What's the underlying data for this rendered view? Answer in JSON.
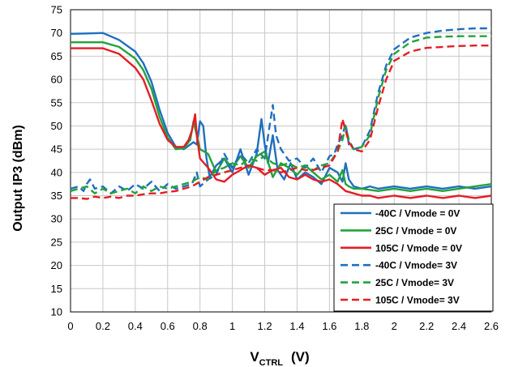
{
  "chart_data": {
    "type": "line",
    "title": "",
    "xlabel_main": "V",
    "xlabel_sub": "CTRL",
    "xlabel_unit": "(V)",
    "ylabel": "Output IP3  (dBm)",
    "xlim": [
      0,
      2.6
    ],
    "ylim": [
      10,
      75
    ],
    "x_ticks": [
      "0",
      "0.2",
      "0.4",
      "0.6",
      "0.8",
      "1",
      "1.2",
      "1.4",
      "1.6",
      "1.8",
      "2",
      "2.2",
      "2.4",
      "2.6"
    ],
    "y_ticks": [
      "10",
      "15",
      "20",
      "25",
      "30",
      "35",
      "40",
      "45",
      "50",
      "55",
      "60",
      "65",
      "70",
      "75"
    ],
    "grid": true,
    "legend_position": "bottom-right",
    "series": [
      {
        "name": "-40C /  Vmode = 0V",
        "color": "#1f6fbf",
        "dash": false,
        "x": [
          0,
          0.1,
          0.2,
          0.3,
          0.4,
          0.45,
          0.5,
          0.55,
          0.6,
          0.65,
          0.7,
          0.74,
          0.76,
          0.78,
          0.8,
          0.82,
          0.84,
          0.86,
          0.9,
          0.95,
          1.0,
          1.05,
          1.1,
          1.15,
          1.18,
          1.2,
          1.22,
          1.25,
          1.28,
          1.32,
          1.36,
          1.4,
          1.45,
          1.5,
          1.55,
          1.6,
          1.65,
          1.68,
          1.7,
          1.72,
          1.75,
          1.8,
          1.85,
          1.9,
          2.0,
          2.1,
          2.2,
          2.3,
          2.4,
          2.5,
          2.6
        ],
        "y": [
          69.8,
          69.9,
          70.0,
          68.5,
          66.0,
          63.5,
          59.5,
          53.5,
          48.5,
          45.5,
          45.0,
          46.0,
          46.5,
          46.0,
          51.0,
          50.0,
          43.0,
          39.0,
          41.5,
          43.0,
          40.0,
          45.0,
          39.5,
          44.0,
          51.5,
          46.0,
          42.0,
          48.0,
          40.5,
          38.5,
          42.0,
          38.5,
          40.0,
          39.0,
          37.5,
          41.0,
          40.0,
          38.0,
          42.0,
          38.5,
          37.0,
          36.5,
          37.0,
          36.5,
          37.0,
          36.5,
          37.0,
          36.5,
          37.0,
          36.5,
          37.0
        ]
      },
      {
        "name": "25C /  Vmode = 0V",
        "color": "#22a33a",
        "dash": false,
        "x": [
          0,
          0.1,
          0.2,
          0.3,
          0.4,
          0.45,
          0.5,
          0.55,
          0.6,
          0.65,
          0.7,
          0.74,
          0.76,
          0.78,
          0.8,
          0.85,
          0.9,
          0.95,
          1.0,
          1.05,
          1.1,
          1.15,
          1.2,
          1.25,
          1.3,
          1.35,
          1.4,
          1.45,
          1.5,
          1.55,
          1.6,
          1.65,
          1.68,
          1.7,
          1.72,
          1.75,
          1.8,
          1.9,
          2.0,
          2.1,
          2.2,
          2.3,
          2.4,
          2.5,
          2.6
        ],
        "y": [
          68.0,
          68.0,
          68.0,
          67.0,
          64.5,
          62.0,
          58.0,
          52.0,
          47.5,
          45.0,
          45.2,
          47.0,
          51.0,
          48.0,
          45.0,
          44.0,
          40.0,
          43.0,
          41.0,
          43.5,
          41.0,
          43.5,
          44.5,
          39.0,
          42.0,
          41.0,
          39.5,
          41.5,
          40.0,
          38.5,
          39.5,
          38.0,
          40.5,
          37.5,
          37.0,
          36.5,
          36.5,
          36.0,
          36.5,
          36.0,
          36.5,
          36.0,
          36.5,
          37.0,
          37.5
        ]
      },
      {
        "name": "105C /  Vmode = 0V",
        "color": "#e31e24",
        "dash": false,
        "x": [
          0,
          0.1,
          0.2,
          0.3,
          0.4,
          0.45,
          0.5,
          0.55,
          0.6,
          0.65,
          0.7,
          0.73,
          0.75,
          0.77,
          0.78,
          0.8,
          0.85,
          0.9,
          0.95,
          1.0,
          1.05,
          1.1,
          1.15,
          1.2,
          1.25,
          1.3,
          1.35,
          1.4,
          1.45,
          1.5,
          1.55,
          1.6,
          1.65,
          1.7,
          1.75,
          1.8,
          1.85,
          1.9,
          2.0,
          2.1,
          2.2,
          2.3,
          2.4,
          2.5,
          2.6
        ],
        "y": [
          66.7,
          66.7,
          66.7,
          65.5,
          62.5,
          60.0,
          55.5,
          50.5,
          47.0,
          45.5,
          45.5,
          47.0,
          49.0,
          52.5,
          48.0,
          43.0,
          41.0,
          38.5,
          38.0,
          39.5,
          40.5,
          41.5,
          41.0,
          39.5,
          40.5,
          41.0,
          39.0,
          38.5,
          39.5,
          38.5,
          38.0,
          38.5,
          37.5,
          36.0,
          35.5,
          35.0,
          35.0,
          34.5,
          35.0,
          34.5,
          35.0,
          34.5,
          35.0,
          34.5,
          35.0
        ]
      },
      {
        "name": "-40C /  Vmode=  3V",
        "color": "#1f6fbf",
        "dash": true,
        "x": [
          0,
          0.05,
          0.08,
          0.1,
          0.12,
          0.15,
          0.2,
          0.25,
          0.3,
          0.35,
          0.4,
          0.45,
          0.5,
          0.55,
          0.6,
          0.65,
          0.7,
          0.75,
          0.78,
          0.8,
          0.85,
          0.9,
          0.95,
          1.0,
          1.05,
          1.1,
          1.15,
          1.2,
          1.23,
          1.25,
          1.27,
          1.3,
          1.35,
          1.4,
          1.45,
          1.5,
          1.55,
          1.6,
          1.63,
          1.65,
          1.68,
          1.7,
          1.72,
          1.75,
          1.8,
          1.85,
          1.9,
          1.95,
          2.0,
          2.1,
          2.2,
          2.3,
          2.4,
          2.5,
          2.6
        ],
        "y": [
          36.5,
          37.0,
          36.0,
          37.5,
          38.5,
          36.5,
          37.0,
          35.5,
          37.0,
          36.0,
          37.5,
          36.5,
          38.0,
          36.0,
          37.5,
          36.5,
          37.0,
          37.5,
          40.0,
          37.0,
          38.5,
          39.5,
          44.0,
          41.0,
          44.0,
          42.0,
          45.0,
          43.0,
          50.0,
          54.5,
          48.0,
          45.0,
          42.5,
          43.0,
          41.0,
          43.0,
          40.0,
          43.5,
          44.0,
          46.0,
          48.0,
          50.5,
          46.0,
          45.0,
          45.5,
          49.0,
          57.0,
          63.0,
          66.5,
          69.0,
          70.0,
          70.5,
          70.8,
          71.0,
          71.0
        ]
      },
      {
        "name": "25C /  Vmode=  3V",
        "color": "#22a33a",
        "dash": true,
        "x": [
          0,
          0.05,
          0.1,
          0.15,
          0.2,
          0.25,
          0.3,
          0.35,
          0.4,
          0.45,
          0.5,
          0.55,
          0.6,
          0.65,
          0.7,
          0.75,
          0.8,
          0.85,
          0.9,
          0.95,
          1.0,
          1.05,
          1.1,
          1.15,
          1.2,
          1.25,
          1.3,
          1.35,
          1.4,
          1.45,
          1.5,
          1.55,
          1.6,
          1.65,
          1.68,
          1.7,
          1.72,
          1.75,
          1.8,
          1.85,
          1.9,
          1.95,
          2.0,
          2.1,
          2.2,
          2.3,
          2.4,
          2.5,
          2.6
        ],
        "y": [
          36.0,
          36.5,
          37.0,
          35.5,
          36.5,
          35.5,
          36.0,
          36.5,
          35.5,
          37.0,
          36.0,
          37.0,
          36.5,
          37.0,
          37.5,
          38.0,
          39.0,
          38.5,
          40.5,
          41.0,
          42.0,
          41.5,
          43.0,
          42.5,
          43.5,
          42.0,
          41.5,
          42.0,
          41.0,
          41.5,
          40.5,
          41.5,
          42.0,
          44.5,
          47.0,
          50.0,
          47.0,
          45.0,
          45.5,
          48.0,
          56.0,
          62.0,
          65.5,
          68.0,
          69.0,
          69.2,
          69.3,
          69.3,
          69.3
        ]
      },
      {
        "name": "105C /  Vmode=  3V",
        "color": "#e31e24",
        "dash": true,
        "x": [
          0,
          0.05,
          0.1,
          0.15,
          0.2,
          0.25,
          0.3,
          0.35,
          0.4,
          0.45,
          0.5,
          0.55,
          0.6,
          0.65,
          0.7,
          0.75,
          0.8,
          0.85,
          0.9,
          0.95,
          1.0,
          1.05,
          1.1,
          1.15,
          1.2,
          1.25,
          1.3,
          1.35,
          1.4,
          1.45,
          1.5,
          1.55,
          1.6,
          1.65,
          1.68,
          1.7,
          1.72,
          1.75,
          1.8,
          1.85,
          1.9,
          1.95,
          2.0,
          2.1,
          2.2,
          2.3,
          2.4,
          2.5,
          2.6
        ],
        "y": [
          34.5,
          34.5,
          34.3,
          34.8,
          34.5,
          34.8,
          34.5,
          35.0,
          35.0,
          35.3,
          35.5,
          35.5,
          35.8,
          36.0,
          36.5,
          37.0,
          38.0,
          39.0,
          39.5,
          40.0,
          40.5,
          41.0,
          41.5,
          41.0,
          40.5,
          40.5,
          40.0,
          40.5,
          41.0,
          40.5,
          40.5,
          41.0,
          41.5,
          44.5,
          51.5,
          49.0,
          46.5,
          45.0,
          44.5,
          47.0,
          54.0,
          60.0,
          64.0,
          66.0,
          66.8,
          67.0,
          67.2,
          67.3,
          67.3
        ]
      }
    ]
  }
}
